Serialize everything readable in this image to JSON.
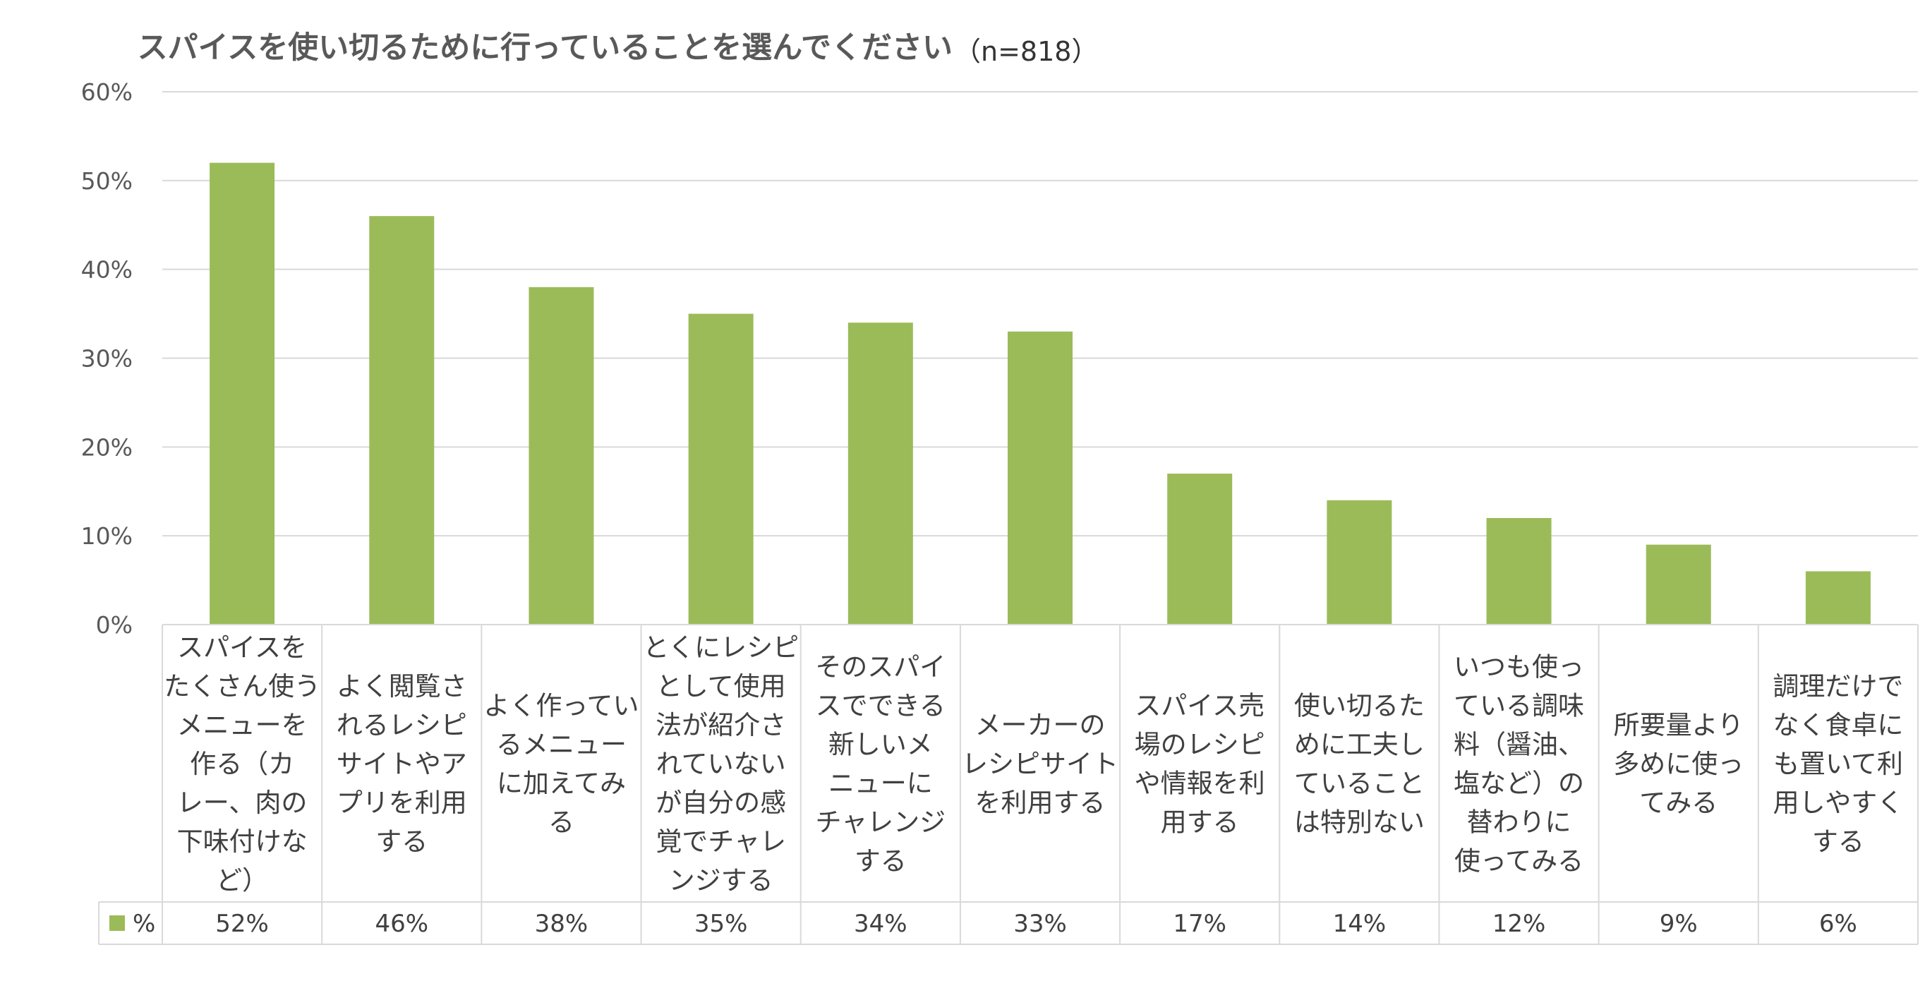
{
  "chart_data": {
    "type": "bar",
    "title": "スパイスを使い切るために行っていることを選んでください",
    "subtitle": "（n=818）",
    "series": [
      {
        "name": "%",
        "values": [
          52,
          46,
          38,
          35,
          34,
          33,
          17,
          14,
          12,
          9,
          6
        ],
        "color": "#9BBB59"
      }
    ],
    "categories": [
      [
        "スパイスを",
        "たくさん使う",
        "メニューを",
        "作る（カ",
        "レー、肉の",
        "下味付けな",
        "ど）"
      ],
      [
        "よく閲覧さ",
        "れるレシピ",
        "サイトやア",
        "プリを利用",
        "する"
      ],
      [
        "よく作ってい",
        "るメニュー",
        "に加えてみ",
        "る"
      ],
      [
        "とくにレシピ",
        "として使用",
        "法が紹介さ",
        "れていない",
        "が自分の感",
        "覚でチャレ",
        "ンジする"
      ],
      [
        "そのスパイ",
        "スでできる",
        "新しいメ",
        "ニューに",
        "チャレンジ",
        "する"
      ],
      [
        "メーカーの",
        "レシピサイト",
        "を利用する"
      ],
      [
        "スパイス売",
        "場のレシピ",
        "や情報を利",
        "用する"
      ],
      [
        "使い切るた",
        "めに工夫し",
        "ていること",
        "は特別ない"
      ],
      [
        "いつも使っ",
        "ている調味",
        "料（醤油、",
        "塩など）の",
        "替わりに",
        "使ってみる"
      ],
      [
        "所要量より",
        "多めに使っ",
        "てみる"
      ],
      [
        "調理だけで",
        "なく食卓に",
        "も置いて利",
        "用しやすく",
        "する"
      ]
    ],
    "value_labels": [
      "52%",
      "46%",
      "38%",
      "35%",
      "34%",
      "33%",
      "17%",
      "14%",
      "12%",
      "9%",
      "6%"
    ],
    "yticks": [
      "0%",
      "10%",
      "20%",
      "30%",
      "40%",
      "50%",
      "60%"
    ],
    "ylim": [
      0,
      60
    ],
    "grid": true,
    "legend": "data-table-left",
    "data_table": true
  }
}
